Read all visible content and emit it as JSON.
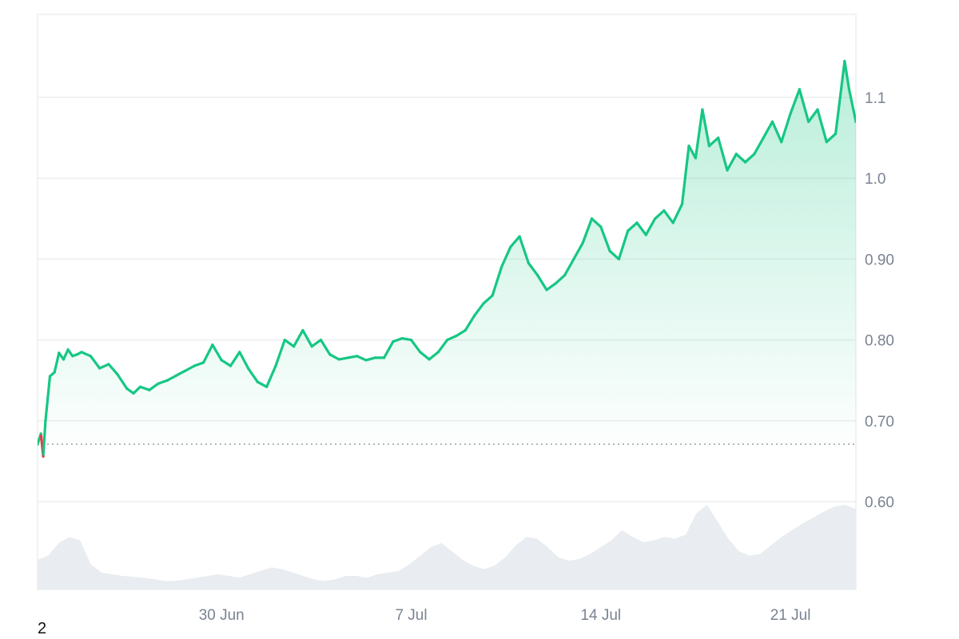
{
  "colors": {
    "up": "#16c784",
    "down": "#ea3943",
    "grid": "#eceef1",
    "volume": "#e9ecf0",
    "baseline": "#9aa1ab"
  },
  "footer_label": "2",
  "chart_data": {
    "type": "area",
    "title": "",
    "xlabel": "",
    "ylabel": "",
    "ylim": [
      0.52,
      1.2
    ],
    "y_ticks": [
      {
        "value": 0.6,
        "label": "0.60"
      },
      {
        "value": 0.7,
        "label": "0.70"
      },
      {
        "value": 0.8,
        "label": "0.80"
      },
      {
        "value": 0.9,
        "label": "0.90"
      },
      {
        "value": 1.0,
        "label": "1.0"
      },
      {
        "value": 1.1,
        "label": "1.1"
      }
    ],
    "x_ticks": [
      {
        "value": "2024-06-30",
        "label": "30 Jun"
      },
      {
        "value": "2024-07-07",
        "label": "7 Jul"
      },
      {
        "value": "2024-07-14",
        "label": "14 Jul"
      },
      {
        "value": "2024-07-21",
        "label": "21 Jul"
      }
    ],
    "xlim": [
      "2024-06-23T05:00",
      "2024-07-23T10:00"
    ],
    "baseline_value": 0.671,
    "grid": true,
    "legend": "none",
    "series": [
      {
        "x": [
          "2024-06-23T05:00",
          "2024-06-23T08:00",
          "2024-06-23T10:00",
          "2024-06-23T12:00",
          "2024-06-23T16:00",
          "2024-06-23T20:00",
          "2024-06-24T00:00",
          "2024-06-24T04:00",
          "2024-06-24T08:00",
          "2024-06-24T12:00",
          "2024-06-24T16:00",
          "2024-06-24T20:00",
          "2024-06-25T04:00",
          "2024-06-25T12:00",
          "2024-06-25T20:00",
          "2024-06-26T04:00",
          "2024-06-26T12:00",
          "2024-06-26T18:00",
          "2024-06-27T00:00",
          "2024-06-27T08:00",
          "2024-06-27T16:00",
          "2024-06-28T00:00",
          "2024-06-28T08:00",
          "2024-06-28T16:00",
          "2024-06-29T00:00",
          "2024-06-29T08:00",
          "2024-06-29T16:00",
          "2024-06-30T00:00",
          "2024-06-30T08:00",
          "2024-06-30T16:00",
          "2024-07-01T00:00",
          "2024-07-01T08:00",
          "2024-07-01T16:00",
          "2024-07-02T00:00",
          "2024-07-02T08:00",
          "2024-07-02T16:00",
          "2024-07-03T00:00",
          "2024-07-03T08:00",
          "2024-07-03T16:00",
          "2024-07-04T00:00",
          "2024-07-04T08:00",
          "2024-07-04T16:00",
          "2024-07-05T00:00",
          "2024-07-05T08:00",
          "2024-07-05T16:00",
          "2024-07-06T00:00",
          "2024-07-06T08:00",
          "2024-07-06T16:00",
          "2024-07-07T00:00",
          "2024-07-07T08:00",
          "2024-07-07T16:00",
          "2024-07-08T00:00",
          "2024-07-08T08:00",
          "2024-07-08T16:00",
          "2024-07-09T00:00",
          "2024-07-09T08:00",
          "2024-07-09T16:00",
          "2024-07-10T00:00",
          "2024-07-10T08:00",
          "2024-07-10T16:00",
          "2024-07-11T00:00",
          "2024-07-11T08:00",
          "2024-07-11T16:00",
          "2024-07-12T00:00",
          "2024-07-12T08:00",
          "2024-07-12T16:00",
          "2024-07-13T00:00",
          "2024-07-13T08:00",
          "2024-07-13T16:00",
          "2024-07-14T00:00",
          "2024-07-14T08:00",
          "2024-07-14T16:00",
          "2024-07-15T00:00",
          "2024-07-15T08:00",
          "2024-07-15T16:00",
          "2024-07-16T00:00",
          "2024-07-16T08:00",
          "2024-07-16T16:00",
          "2024-07-17T00:00",
          "2024-07-17T06:00",
          "2024-07-17T12:00",
          "2024-07-17T18:00",
          "2024-07-18T00:00",
          "2024-07-18T08:00",
          "2024-07-18T16:00",
          "2024-07-19T00:00",
          "2024-07-19T08:00",
          "2024-07-19T16:00",
          "2024-07-20T00:00",
          "2024-07-20T08:00",
          "2024-07-20T16:00",
          "2024-07-21T00:00",
          "2024-07-21T08:00",
          "2024-07-21T16:00",
          "2024-07-22T00:00",
          "2024-07-22T08:00",
          "2024-07-22T16:00",
          "2024-07-23T00:00",
          "2024-07-23T04:00",
          "2024-07-23T10:00"
        ],
        "values": [
          0.671,
          0.684,
          0.656,
          0.7,
          0.755,
          0.76,
          0.784,
          0.776,
          0.788,
          0.78,
          0.782,
          0.785,
          0.78,
          0.765,
          0.77,
          0.757,
          0.74,
          0.734,
          0.742,
          0.738,
          0.746,
          0.75,
          0.756,
          0.762,
          0.768,
          0.772,
          0.794,
          0.775,
          0.768,
          0.785,
          0.764,
          0.748,
          0.742,
          0.768,
          0.8,
          0.792,
          0.812,
          0.792,
          0.8,
          0.782,
          0.776,
          0.778,
          0.78,
          0.775,
          0.778,
          0.778,
          0.798,
          0.802,
          0.8,
          0.785,
          0.776,
          0.785,
          0.8,
          0.805,
          0.812,
          0.83,
          0.845,
          0.855,
          0.89,
          0.915,
          0.928,
          0.895,
          0.88,
          0.862,
          0.87,
          0.88,
          0.9,
          0.92,
          0.95,
          0.94,
          0.91,
          0.9,
          0.935,
          0.945,
          0.93,
          0.95,
          0.96,
          0.945,
          0.968,
          1.04,
          1.025,
          1.085,
          1.04,
          1.05,
          1.01,
          1.03,
          1.02,
          1.03,
          1.05,
          1.07,
          1.045,
          1.08,
          1.11,
          1.07,
          1.085,
          1.045,
          1.055,
          1.145,
          1.11,
          1.07
        ]
      }
    ],
    "volume": [
      0.35,
      0.4,
      0.55,
      0.62,
      0.58,
      0.3,
      0.2,
      0.18,
      0.16,
      0.15,
      0.14,
      0.12,
      0.1,
      0.1,
      0.12,
      0.14,
      0.16,
      0.18,
      0.16,
      0.14,
      0.18,
      0.22,
      0.26,
      0.24,
      0.2,
      0.16,
      0.12,
      0.1,
      0.12,
      0.16,
      0.16,
      0.14,
      0.18,
      0.2,
      0.22,
      0.3,
      0.4,
      0.5,
      0.55,
      0.45,
      0.35,
      0.28,
      0.24,
      0.28,
      0.38,
      0.52,
      0.62,
      0.6,
      0.5,
      0.38,
      0.34,
      0.36,
      0.42,
      0.5,
      0.58,
      0.7,
      0.62,
      0.56,
      0.58,
      0.62,
      0.6,
      0.65,
      0.9,
      1.0,
      0.8,
      0.6,
      0.45,
      0.4,
      0.42,
      0.52,
      0.62,
      0.7,
      0.78,
      0.85,
      0.92,
      0.98,
      1.0,
      0.95
    ]
  }
}
